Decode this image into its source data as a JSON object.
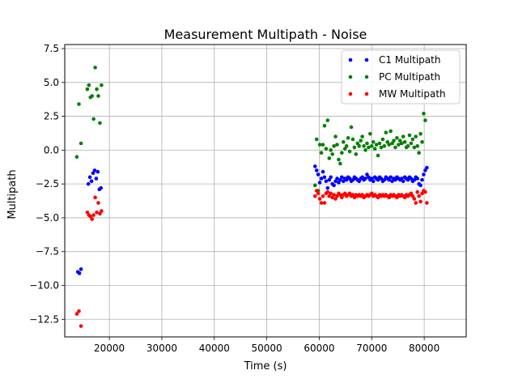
{
  "chart_data": {
    "type": "scatter",
    "title": "Measurement Multipath - Noise",
    "xlabel": "Time (s)",
    "ylabel": "Multipath",
    "xlim": [
      11500,
      88000
    ],
    "ylim": [
      -13.8,
      7.8
    ],
    "grid": true,
    "legend_position": "top-right",
    "x_ticks": [
      20000,
      30000,
      40000,
      50000,
      60000,
      70000,
      80000
    ],
    "x_tick_labels": [
      "20000",
      "30000",
      "40000",
      "50000",
      "60000",
      "70000",
      "80000"
    ],
    "y_ticks": [
      7.5,
      5.0,
      2.5,
      0.0,
      -2.5,
      -5.0,
      -7.5,
      -10.0,
      -12.5
    ],
    "y_tick_labels": [
      "7.5",
      "5.0",
      "2.5",
      "0.0",
      "−2.5",
      "−5.0",
      "−7.5",
      "−10.0",
      "−12.5"
    ],
    "series": [
      {
        "name": "C1 Multipath",
        "color": "#0000ff",
        "x": [
          14000,
          14300,
          14600,
          16000,
          16300,
          16600,
          16900,
          17200,
          17500,
          17800,
          18100,
          18400,
          59200,
          59500,
          59800,
          60100,
          60400,
          60700,
          61000,
          61300,
          61600,
          61900,
          62200,
          62500,
          62800,
          63100,
          63400,
          63700,
          64000,
          64300,
          64600,
          64900,
          65200,
          65500,
          65800,
          66100,
          66400,
          66700,
          67000,
          67300,
          67600,
          67900,
          68200,
          68500,
          68800,
          69100,
          69400,
          69700,
          70000,
          70300,
          70600,
          70900,
          71200,
          71500,
          71800,
          72100,
          72400,
          72700,
          73000,
          73300,
          73600,
          73900,
          74200,
          74500,
          74800,
          75100,
          75400,
          75700,
          76000,
          76300,
          76600,
          76900,
          77200,
          77500,
          77800,
          78100,
          78400,
          78700,
          79000,
          79300,
          79600,
          79900,
          80200,
          80500
        ],
        "y": [
          -9.0,
          -9.1,
          -8.8,
          -2.5,
          -2.0,
          -2.3,
          -1.7,
          -1.5,
          -2.1,
          -1.6,
          -2.9,
          -2.8,
          -1.2,
          -1.5,
          -1.8,
          -2.4,
          -2.1,
          -1.6,
          -2.0,
          -2.3,
          -2.8,
          -2.2,
          -2.0,
          -2.5,
          -2.6,
          -2.3,
          -2.1,
          -2.4,
          -2.2,
          -2.0,
          -2.3,
          -2.1,
          -2.2,
          -2.0,
          -2.1,
          -2.3,
          -2.2,
          -2.0,
          -2.1,
          -2.2,
          -2.3,
          -2.1,
          -2.0,
          -2.2,
          -2.1,
          -1.8,
          -2.0,
          -2.2,
          -2.1,
          -2.3,
          -2.0,
          -2.1,
          -2.2,
          -2.0,
          -2.1,
          -2.3,
          -2.2,
          -2.0,
          -2.1,
          -2.2,
          -2.0,
          -2.3,
          -2.1,
          -2.2,
          -2.0,
          -2.1,
          -2.2,
          -2.1,
          -2.3,
          -2.0,
          -2.1,
          -2.2,
          -2.0,
          -2.1,
          -2.3,
          -2.2,
          -2.0,
          -2.1,
          -2.5,
          -2.6,
          -2.2,
          -1.8,
          -1.5,
          -1.3
        ]
      },
      {
        "name": "PC Multipath",
        "color": "#008000",
        "x": [
          13800,
          14200,
          14600,
          15800,
          16100,
          16400,
          16700,
          17000,
          17300,
          17600,
          17900,
          18200,
          18500,
          59200,
          59500,
          59800,
          60100,
          60400,
          60700,
          61000,
          61300,
          61600,
          61900,
          62200,
          62500,
          62800,
          63100,
          63400,
          63700,
          64000,
          64300,
          64600,
          64900,
          65200,
          65500,
          65800,
          66100,
          66400,
          66700,
          67000,
          67300,
          67600,
          67900,
          68200,
          68500,
          68800,
          69100,
          69400,
          69700,
          70000,
          70300,
          70600,
          70900,
          71200,
          71500,
          71800,
          72100,
          72400,
          72700,
          73000,
          73300,
          73600,
          73900,
          74200,
          74500,
          74800,
          75100,
          75400,
          75700,
          76000,
          76300,
          76600,
          76900,
          77200,
          77500,
          77800,
          78100,
          78400,
          78700,
          79000,
          79300,
          79600,
          79900,
          80200
        ],
        "y": [
          -0.5,
          3.4,
          0.5,
          4.5,
          4.8,
          3.9,
          4.0,
          2.3,
          6.1,
          4.5,
          4.0,
          2.0,
          4.8,
          -2.6,
          0.8,
          -3.0,
          0.4,
          -0.2,
          0.4,
          1.8,
          0.1,
          2.2,
          -0.6,
          0.0,
          -0.3,
          0.3,
          1.0,
          0.4,
          -0.7,
          -1.0,
          -0.2,
          0.6,
          0.1,
          0.3,
          0.9,
          -0.1,
          1.7,
          0.8,
          0.2,
          -0.3,
          0.5,
          0.3,
          0.7,
          1.0,
          0.3,
          0.0,
          0.5,
          0.2,
          1.2,
          0.3,
          0.6,
          0.1,
          0.4,
          -0.4,
          0.5,
          0.2,
          0.8,
          0.3,
          1.3,
          0.6,
          0.4,
          1.4,
          0.5,
          0.7,
          0.2,
          0.9,
          0.4,
          0.7,
          0.5,
          1.0,
          0.6,
          0.2,
          0.3,
          1.1,
          0.5,
          0.8,
          0.2,
          1.0,
          0.3,
          -0.2,
          1.2,
          0.6,
          2.7,
          2.2
        ]
      },
      {
        "name": "MW Multipath",
        "color": "#ff0000",
        "x": [
          13800,
          14200,
          14600,
          15800,
          16100,
          16400,
          16700,
          17000,
          17300,
          17600,
          17900,
          18200,
          18500,
          59200,
          59500,
          59800,
          60100,
          60400,
          60700,
          61000,
          61300,
          61600,
          61900,
          62200,
          62500,
          62800,
          63100,
          63400,
          63700,
          64000,
          64300,
          64600,
          64900,
          65200,
          65500,
          65800,
          66100,
          66400,
          66700,
          67000,
          67300,
          67600,
          67900,
          68200,
          68500,
          68800,
          69100,
          69400,
          69700,
          70000,
          70300,
          70600,
          70900,
          71200,
          71500,
          71800,
          72100,
          72400,
          72700,
          73000,
          73300,
          73600,
          73900,
          74200,
          74500,
          74800,
          75100,
          75400,
          75700,
          76000,
          76300,
          76600,
          76900,
          77200,
          77500,
          77800,
          78100,
          78400,
          78700,
          79000,
          79300,
          79600,
          79900,
          80200,
          80500
        ],
        "y": [
          -12.1,
          -11.9,
          -13.0,
          -4.6,
          -4.8,
          -4.9,
          -5.1,
          -4.8,
          -3.5,
          -4.6,
          -3.9,
          -4.7,
          -4.5,
          -3.4,
          -3.0,
          -3.2,
          -3.6,
          -3.9,
          -3.4,
          -3.9,
          -3.2,
          -3.1,
          -3.4,
          -3.2,
          -3.5,
          -3.3,
          -3.6,
          -3.4,
          -3.2,
          -3.3,
          -3.5,
          -3.3,
          -3.2,
          -3.4,
          -3.3,
          -3.2,
          -3.4,
          -3.3,
          -3.5,
          -3.3,
          -3.4,
          -3.3,
          -3.4,
          -3.3,
          -3.5,
          -3.4,
          -3.3,
          -3.4,
          -3.3,
          -3.2,
          -3.4,
          -3.3,
          -3.4,
          -3.5,
          -3.3,
          -3.4,
          -3.3,
          -3.4,
          -3.3,
          -3.4,
          -3.5,
          -3.3,
          -3.4,
          -3.3,
          -3.4,
          -3.5,
          -3.3,
          -3.4,
          -3.3,
          -3.4,
          -3.5,
          -3.3,
          -3.4,
          -3.3,
          -3.2,
          -3.4,
          -3.6,
          -3.9,
          -3.1,
          -3.4,
          -3.8,
          -3.2,
          -3.0,
          -3.1,
          -3.9
        ]
      }
    ]
  }
}
